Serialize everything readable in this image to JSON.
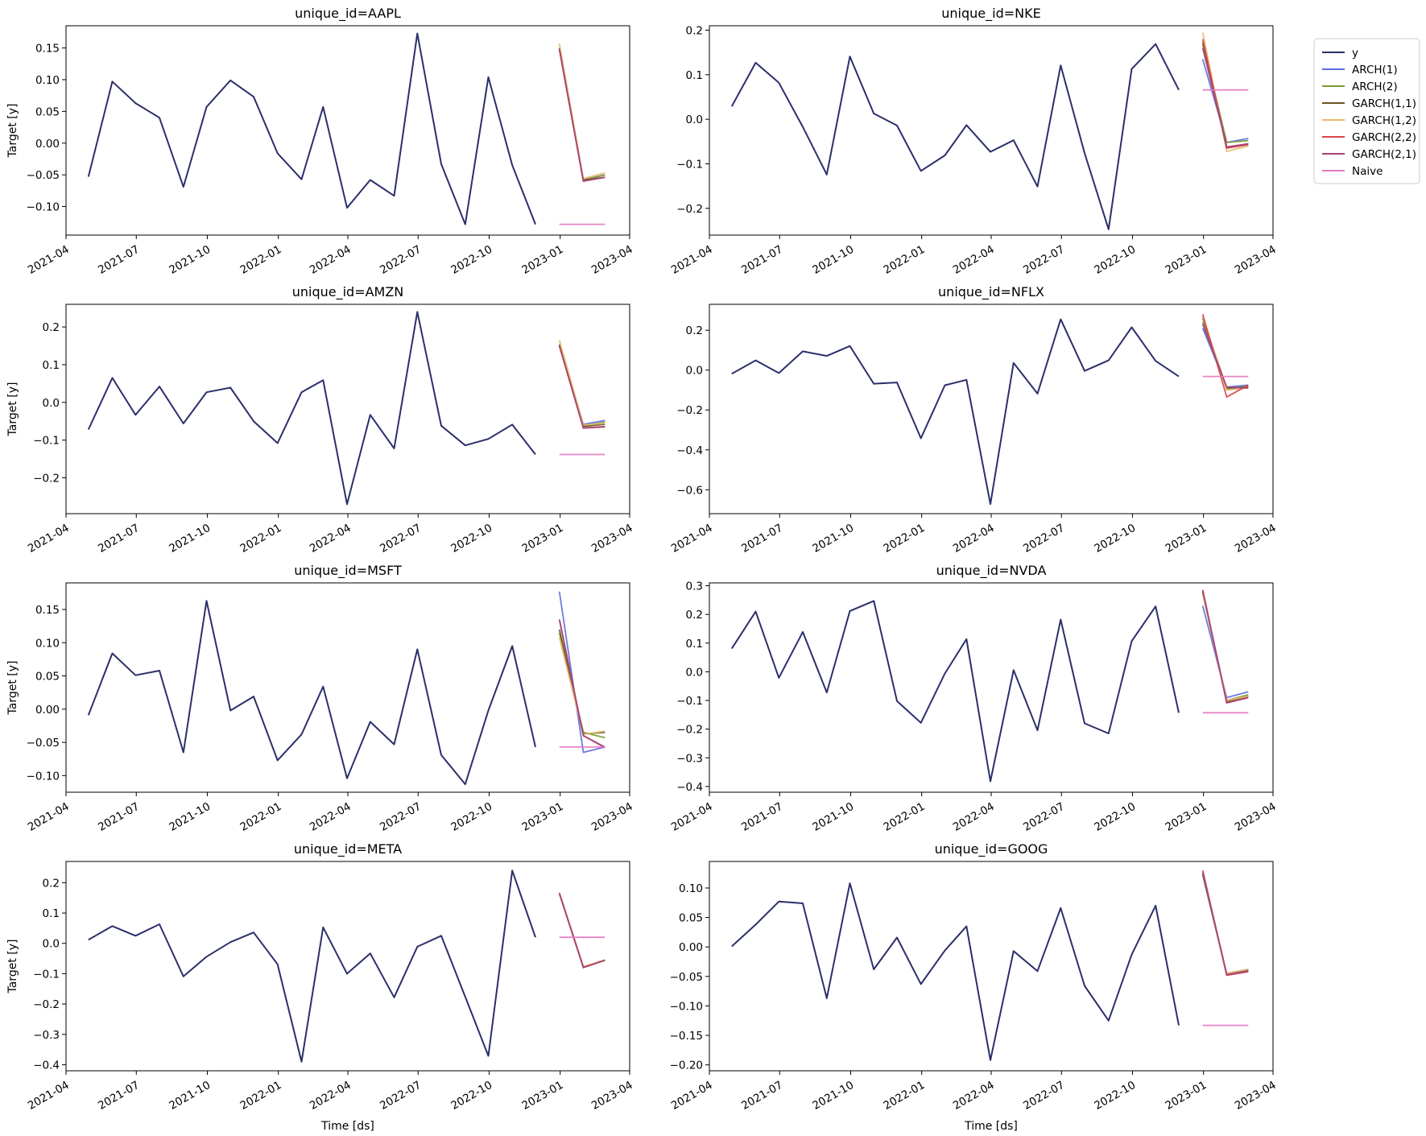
{
  "figure": {
    "xlabel": "Time [ds]",
    "ylabel": "Target [y]"
  },
  "legend": {
    "placement": "outside-right",
    "entries": [
      {
        "name": "y",
        "color": "#2b2f6b"
      },
      {
        "name": "ARCH(1)",
        "color": "#5b6ee1"
      },
      {
        "name": "ARCH(2)",
        "color": "#7c9a2e"
      },
      {
        "name": "GARCH(1,1)",
        "color": "#6b5520"
      },
      {
        "name": "GARCH(1,2)",
        "color": "#e6b96a"
      },
      {
        "name": "GARCH(2,2)",
        "color": "#d9434b"
      },
      {
        "name": "GARCH(2,1)",
        "color": "#a3447a"
      },
      {
        "name": "Naive",
        "color": "#e377c2"
      }
    ]
  },
  "chart_data": [
    {
      "type": "line",
      "title": "unique_id=AAPL",
      "xlabel": "",
      "ylabel": "Target [y]",
      "ylim": [
        -0.145,
        0.185
      ],
      "yticks": [
        0.15,
        0.1,
        0.05,
        0.0,
        -0.05,
        -0.1
      ],
      "ytick_labels": [
        "0.15",
        "0.10",
        "0.05",
        "0.00",
        "−0.05",
        "−0.10"
      ],
      "y": [
        -0.053,
        0.097,
        0.063,
        0.04,
        -0.069,
        0.057,
        0.099,
        0.073,
        -0.016,
        -0.057,
        0.057,
        -0.102,
        -0.058,
        -0.083,
        0.173,
        -0.033,
        -0.128,
        0.104,
        -0.035,
        -0.128
      ],
      "forecasts": {
        "ARCH(1)": [
          0.15,
          -0.058,
          -0.05
        ],
        "ARCH(2)": [
          0.15,
          -0.058,
          -0.05
        ],
        "GARCH(1,1)": [
          0.15,
          -0.058,
          -0.054
        ],
        "GARCH(1,2)": [
          0.157,
          -0.056,
          -0.047
        ],
        "GARCH(2,2)": [
          0.148,
          -0.06,
          -0.054
        ],
        "GARCH(2,1)": [
          0.148,
          -0.06,
          -0.054
        ],
        "Naive": [
          -0.128,
          -0.128,
          -0.128
        ]
      }
    },
    {
      "type": "line",
      "title": "unique_id=NKE",
      "xlabel": "",
      "ylabel": "",
      "ylim": [
        -0.26,
        0.21
      ],
      "yticks": [
        0.2,
        0.1,
        0.0,
        -0.1,
        -0.2
      ],
      "ytick_labels": [
        "0.2",
        "0.1",
        "0.0",
        "−0.1",
        "−0.2"
      ],
      "y": [
        0.029,
        0.127,
        0.082,
        -0.017,
        -0.124,
        0.141,
        0.013,
        -0.014,
        -0.116,
        -0.081,
        -0.013,
        -0.073,
        -0.047,
        -0.151,
        0.121,
        -0.076,
        -0.247,
        0.113,
        0.169,
        0.066
      ],
      "forecasts": {
        "ARCH(1)": [
          0.135,
          -0.052,
          -0.043
        ],
        "ARCH(2)": [
          0.175,
          -0.052,
          -0.048
        ],
        "GARCH(1,1)": [
          0.17,
          -0.063,
          -0.055
        ],
        "GARCH(1,2)": [
          0.195,
          -0.072,
          -0.06
        ],
        "GARCH(2,2)": [
          0.18,
          -0.065,
          -0.057
        ],
        "GARCH(2,1)": [
          0.16,
          -0.062,
          -0.055
        ],
        "Naive": [
          0.066,
          0.066,
          0.066
        ]
      }
    },
    {
      "type": "line",
      "title": "unique_id=AMZN",
      "xlabel": "",
      "ylabel": "Target [y]",
      "ylim": [
        -0.295,
        0.26
      ],
      "yticks": [
        0.2,
        0.1,
        0.0,
        -0.1,
        -0.2
      ],
      "ytick_labels": [
        "0.2",
        "0.1",
        "0.0",
        "−0.1",
        "−0.2"
      ],
      "y": [
        -0.072,
        0.065,
        -0.033,
        0.042,
        -0.056,
        0.027,
        0.039,
        -0.05,
        -0.108,
        0.027,
        0.059,
        -0.27,
        -0.033,
        -0.122,
        0.24,
        -0.062,
        -0.114,
        -0.097,
        -0.059,
        -0.138
      ],
      "forecasts": {
        "ARCH(1)": [
          0.15,
          -0.058,
          -0.048
        ],
        "ARCH(2)": [
          0.155,
          -0.062,
          -0.052
        ],
        "GARCH(1,1)": [
          0.152,
          -0.064,
          -0.058
        ],
        "GARCH(1,2)": [
          0.165,
          -0.06,
          -0.055
        ],
        "GARCH(2,2)": [
          0.15,
          -0.068,
          -0.065
        ],
        "GARCH(2,1)": [
          0.15,
          -0.068,
          -0.064
        ],
        "Naive": [
          -0.138,
          -0.138,
          -0.138
        ]
      }
    },
    {
      "type": "line",
      "title": "unique_id=NFLX",
      "xlabel": "",
      "ylabel": "",
      "ylim": [
        -0.72,
        0.33
      ],
      "yticks": [
        0.2,
        0.0,
        -0.2,
        -0.4,
        -0.6
      ],
      "ytick_labels": [
        "0.2",
        "0.0",
        "−0.2",
        "−0.4",
        "−0.6"
      ],
      "y": [
        -0.018,
        0.049,
        -0.015,
        0.094,
        0.071,
        0.121,
        -0.068,
        -0.062,
        -0.342,
        -0.076,
        -0.049,
        -0.672,
        0.036,
        -0.118,
        0.255,
        -0.004,
        0.049,
        0.215,
        0.046,
        -0.032
      ],
      "forecasts": {
        "ARCH(1)": [
          0.21,
          -0.085,
          -0.075
        ],
        "ARCH(2)": [
          0.24,
          -0.095,
          -0.08
        ],
        "GARCH(1,1)": [
          0.26,
          -0.09,
          -0.085
        ],
        "GARCH(1,2)": [
          0.27,
          -0.1,
          -0.09
        ],
        "GARCH(2,2)": [
          0.28,
          -0.135,
          -0.075
        ],
        "GARCH(2,1)": [
          0.23,
          -0.085,
          -0.09
        ],
        "Naive": [
          -0.032,
          -0.032,
          -0.032
        ]
      }
    },
    {
      "type": "line",
      "title": "unique_id=MSFT",
      "xlabel": "",
      "ylabel": "Target [y]",
      "ylim": [
        -0.125,
        0.19
      ],
      "yticks": [
        0.15,
        0.1,
        0.05,
        0.0,
        -0.05,
        -0.1
      ],
      "ytick_labels": [
        "0.15",
        "0.10",
        "0.05",
        "0.00",
        "−0.05",
        "−0.10"
      ],
      "y": [
        -0.009,
        0.084,
        0.051,
        0.058,
        -0.065,
        0.163,
        -0.002,
        0.019,
        -0.077,
        -0.038,
        0.034,
        -0.104,
        -0.019,
        -0.053,
        0.09,
        -0.069,
        -0.113,
        -0.002,
        0.095,
        -0.057
      ],
      "forecasts": {
        "ARCH(1)": [
          0.177,
          -0.065,
          -0.057
        ],
        "ARCH(2)": [
          0.115,
          -0.035,
          -0.043
        ],
        "GARCH(1,1)": [
          0.12,
          -0.037,
          -0.035
        ],
        "GARCH(1,2)": [
          0.108,
          -0.038,
          -0.033
        ],
        "GARCH(2,2)": [
          0.135,
          -0.04,
          -0.058
        ],
        "GARCH(2,1)": [
          0.135,
          -0.04,
          -0.057
        ],
        "Naive": [
          -0.057,
          -0.057,
          -0.057
        ]
      }
    },
    {
      "type": "line",
      "title": "unique_id=NVDA",
      "xlabel": "",
      "ylabel": "",
      "ylim": [
        -0.42,
        0.31
      ],
      "yticks": [
        0.3,
        0.2,
        0.1,
        0.0,
        -0.1,
        -0.2,
        -0.3,
        -0.4
      ],
      "ytick_labels": [
        "0.3",
        "0.2",
        "0.1",
        "0.0",
        "−0.1",
        "−0.2",
        "−0.3",
        "−0.4"
      ],
      "y": [
        0.081,
        0.21,
        -0.021,
        0.139,
        -0.072,
        0.212,
        0.247,
        -0.102,
        -0.178,
        -0.006,
        0.114,
        -0.382,
        0.006,
        -0.204,
        0.182,
        -0.18,
        -0.215,
        0.107,
        0.228,
        -0.143
      ],
      "forecasts": {
        "ARCH(1)": [
          0.23,
          -0.09,
          -0.07
        ],
        "ARCH(2)": [
          0.275,
          -0.1,
          -0.08
        ],
        "GARCH(1,1)": [
          0.28,
          -0.105,
          -0.085
        ],
        "GARCH(1,2)": [
          0.27,
          -0.1,
          -0.085
        ],
        "GARCH(2,2)": [
          0.285,
          -0.108,
          -0.09
        ],
        "GARCH(2,1)": [
          0.285,
          -0.108,
          -0.09
        ],
        "Naive": [
          -0.143,
          -0.143,
          -0.143
        ]
      }
    },
    {
      "type": "line",
      "title": "unique_id=META",
      "xlabel": "Time [ds]",
      "ylabel": "Target [y]",
      "ylim": [
        -0.42,
        0.27
      ],
      "yticks": [
        0.2,
        0.1,
        0.0,
        -0.1,
        -0.2,
        -0.3,
        -0.4
      ],
      "ytick_labels": [
        "0.2",
        "0.1",
        "0.0",
        "−0.1",
        "−0.2",
        "−0.3",
        "−0.4"
      ],
      "y": [
        0.012,
        0.057,
        0.025,
        0.063,
        -0.109,
        -0.044,
        0.004,
        0.036,
        -0.069,
        -0.39,
        0.053,
        -0.1,
        -0.033,
        -0.178,
        -0.011,
        0.025,
        -0.176,
        -0.371,
        0.24,
        0.02
      ],
      "forecasts": {
        "ARCH(1)": [
          0.165,
          -0.078,
          -0.055
        ],
        "ARCH(2)": [
          0.165,
          -0.078,
          -0.055
        ],
        "GARCH(1,1)": [
          0.165,
          -0.078,
          -0.055
        ],
        "GARCH(1,2)": [
          0.168,
          -0.077,
          -0.054
        ],
        "GARCH(2,2)": [
          0.165,
          -0.079,
          -0.056
        ],
        "GARCH(2,1)": [
          0.165,
          -0.08,
          -0.056
        ],
        "Naive": [
          0.02,
          0.02,
          0.02
        ]
      }
    },
    {
      "type": "line",
      "title": "unique_id=GOOG",
      "xlabel": "Time [ds]",
      "ylabel": "",
      "ylim": [
        -0.21,
        0.145
      ],
      "yticks": [
        0.1,
        0.05,
        0.0,
        -0.05,
        -0.1,
        -0.15,
        -0.2
      ],
      "ytick_labels": [
        "0.10",
        "0.05",
        "0.00",
        "−0.05",
        "−0.10",
        "−0.15",
        "−0.20"
      ],
      "y": [
        0.001,
        0.038,
        0.077,
        0.074,
        -0.087,
        0.108,
        -0.038,
        0.016,
        -0.063,
        -0.006,
        0.035,
        -0.192,
        -0.007,
        -0.041,
        0.066,
        -0.066,
        -0.125,
        -0.013,
        0.07,
        -0.133
      ],
      "forecasts": {
        "ARCH(1)": [
          0.122,
          -0.045,
          -0.038
        ],
        "ARCH(2)": [
          0.125,
          -0.046,
          -0.039
        ],
        "GARCH(1,1)": [
          0.124,
          -0.046,
          -0.04
        ],
        "GARCH(1,2)": [
          0.128,
          -0.045,
          -0.038
        ],
        "GARCH(2,2)": [
          0.13,
          -0.048,
          -0.042
        ],
        "GARCH(2,1)": [
          0.126,
          -0.047,
          -0.041
        ],
        "Naive": [
          -0.133,
          -0.133,
          -0.133
        ]
      }
    }
  ],
  "time": {
    "x_range": [
      "2021-04-01",
      "2023-04-01"
    ],
    "history_dates": [
      "2021-04-30",
      "2021-05-31",
      "2021-06-30",
      "2021-07-31",
      "2021-08-31",
      "2021-09-30",
      "2021-10-31",
      "2021-11-30",
      "2021-12-31",
      "2022-01-31",
      "2022-02-28",
      "2022-03-31",
      "2022-04-30",
      "2022-05-31",
      "2022-06-30",
      "2022-07-31",
      "2022-08-31",
      "2022-09-30",
      "2022-10-31",
      "2022-11-30"
    ],
    "forecast_dates": [
      "2022-12-31",
      "2023-01-31",
      "2023-02-28"
    ],
    "ticks": [
      "2021-04-01",
      "2021-07-01",
      "2021-10-01",
      "2022-01-01",
      "2022-04-01",
      "2022-07-01",
      "2022-10-01",
      "2023-01-01",
      "2023-04-01"
    ],
    "tick_labels": [
      "2021-04",
      "2021-07",
      "2021-10",
      "2022-01",
      "2022-04",
      "2022-07",
      "2022-10",
      "2023-01",
      "2023-04"
    ]
  }
}
